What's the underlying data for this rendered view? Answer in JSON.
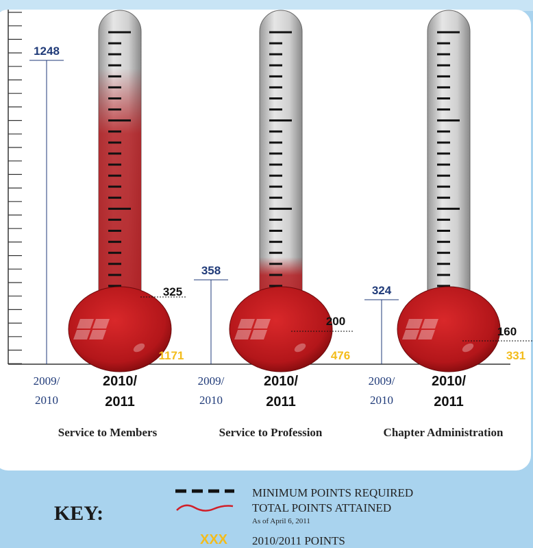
{
  "columns": [
    {
      "name": "Service to Members",
      "previous_points": 1248,
      "minimum_points": 325,
      "current_points": 1171
    },
    {
      "name": "Service to Profession",
      "previous_points": 358,
      "minimum_points": 200,
      "current_points": 476
    },
    {
      "name": "Chapter Administration",
      "previous_points": 324,
      "minimum_points": 160,
      "current_points": 331
    }
  ],
  "years": {
    "previous": [
      "2009/",
      "2010"
    ],
    "current": [
      "2010/",
      "2011"
    ]
  },
  "key": {
    "title": "KEY:",
    "minimum": "MINIMUM POINTS REQUIRED",
    "total": "TOTAL POINTS ATTAINED",
    "total_note": "As of April 6, 2011",
    "points_symbol": "XXX",
    "points": "2010/2011 POINTS"
  }
}
